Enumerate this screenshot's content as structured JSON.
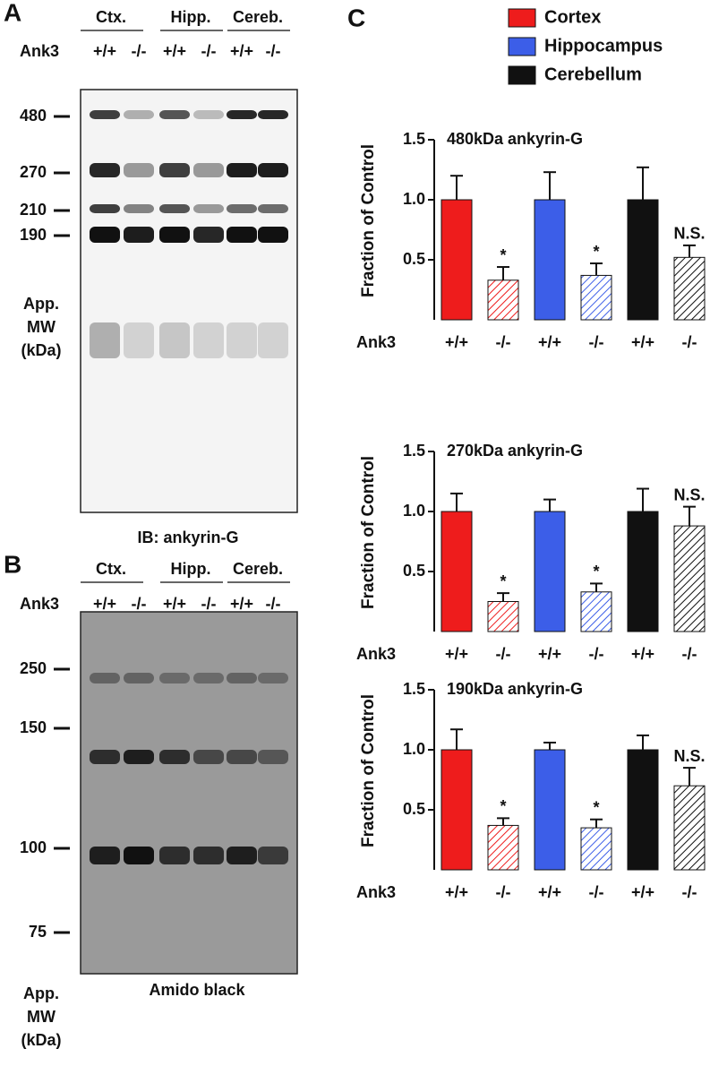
{
  "panels": {
    "A": {
      "label": "A",
      "groups": [
        "Ctx.",
        "Hipp.",
        "Cereb."
      ],
      "genotype_label": "Ank3",
      "lanes": [
        "+/+",
        "-/-",
        "+/+",
        "-/-",
        "+/+",
        "-/-"
      ],
      "markers": [
        480,
        270,
        210,
        190
      ],
      "mw_label": [
        "App.",
        "MW",
        "(kDa)"
      ],
      "caption": "IB: ankyrin-G"
    },
    "B": {
      "label": "B",
      "groups": [
        "Ctx.",
        "Hipp.",
        "Cereb."
      ],
      "genotype_label": "Ank3",
      "lanes": [
        "+/+",
        "-/-",
        "+/+",
        "-/-",
        "+/+",
        "-/-"
      ],
      "markers": [
        250,
        150,
        100,
        75
      ],
      "mw_label": [
        "App.",
        "MW",
        "(kDa)"
      ],
      "caption": "Amido black"
    },
    "C": {
      "label": "C"
    }
  },
  "legend": [
    {
      "name": "Cortex",
      "color": "#ee1c1c"
    },
    {
      "name": "Hippocampus",
      "color": "#3c5ee8"
    },
    {
      "name": "Cerebellum",
      "color": "#111111"
    }
  ],
  "chart_data": [
    {
      "type": "bar",
      "title": "480kDa ankyrin-G",
      "ylabel": "Fraction of Control",
      "x_row_label": "Ank3",
      "categories": [
        "+/+",
        "-/-",
        "+/+",
        "-/-",
        "+/+",
        "-/-"
      ],
      "values": [
        1.0,
        0.33,
        1.0,
        0.37,
        1.0,
        0.52
      ],
      "errors": [
        0.2,
        0.11,
        0.23,
        0.1,
        0.27,
        0.1
      ],
      "colors": [
        "#ee1c1c",
        "#ee1c1c",
        "#3c5ee8",
        "#3c5ee8",
        "#111111",
        "#111111"
      ],
      "hatched": [
        false,
        true,
        false,
        true,
        false,
        true
      ],
      "annotations": [
        null,
        "*",
        null,
        "*",
        null,
        "N.S."
      ],
      "ylim": [
        0,
        1.5
      ],
      "yticks": [
        0.5,
        {
          "value": 1,
          "label": "1.0"
        },
        1.5
      ]
    },
    {
      "type": "bar",
      "title": "270kDa ankyrin-G",
      "ylabel": "Fraction of Control",
      "x_row_label": "Ank3",
      "categories": [
        "+/+",
        "-/-",
        "+/+",
        "-/-",
        "+/+",
        "-/-"
      ],
      "values": [
        1.0,
        0.25,
        1.0,
        0.33,
        1.0,
        0.88
      ],
      "errors": [
        0.15,
        0.07,
        0.1,
        0.07,
        0.19,
        0.16
      ],
      "colors": [
        "#ee1c1c",
        "#ee1c1c",
        "#3c5ee8",
        "#3c5ee8",
        "#111111",
        "#111111"
      ],
      "hatched": [
        false,
        true,
        false,
        true,
        false,
        true
      ],
      "annotations": [
        null,
        "*",
        null,
        "*",
        null,
        "N.S."
      ],
      "ylim": [
        0,
        1.5
      ],
      "yticks": [
        0.5,
        {
          "value": 1,
          "label": "1.0"
        },
        1.5
      ]
    },
    {
      "type": "bar",
      "title": "190kDa ankyrin-G",
      "ylabel": "Fraction of Control",
      "x_row_label": "Ank3",
      "categories": [
        "+/+",
        "-/-",
        "+/+",
        "-/-",
        "+/+",
        "-/-"
      ],
      "values": [
        1.0,
        0.37,
        1.0,
        0.35,
        1.0,
        0.7
      ],
      "errors": [
        0.17,
        0.06,
        0.06,
        0.07,
        0.12,
        0.15
      ],
      "colors": [
        "#ee1c1c",
        "#ee1c1c",
        "#3c5ee8",
        "#3c5ee8",
        "#111111",
        "#111111"
      ],
      "hatched": [
        false,
        true,
        false,
        true,
        false,
        true
      ],
      "annotations": [
        null,
        "*",
        null,
        "*",
        null,
        "N.S."
      ],
      "ylim": [
        0,
        1.5
      ],
      "yticks": [
        0.5,
        {
          "value": 1,
          "label": "1.0"
        },
        1.5
      ]
    }
  ]
}
